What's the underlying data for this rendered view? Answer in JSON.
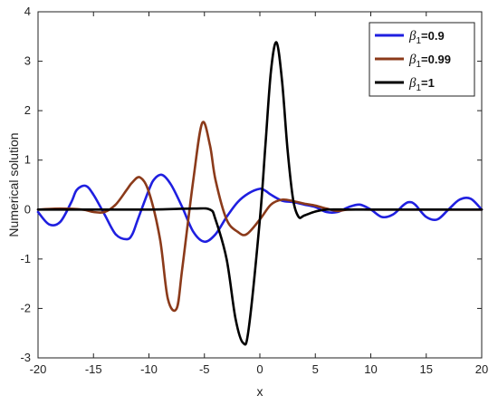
{
  "chart_data": {
    "type": "line",
    "title": "",
    "xlabel": "x",
    "ylabel": "Numerical solution",
    "xlim": [
      -20,
      20
    ],
    "ylim": [
      -3,
      4
    ],
    "xticks": [
      "-20",
      "-15",
      "-10",
      "-5",
      "0",
      "5",
      "10",
      "15",
      "20"
    ],
    "yticks": [
      "-3",
      "-2",
      "-1",
      "0",
      "1",
      "2",
      "3",
      "4"
    ],
    "grid": false,
    "legend_position": "top-right",
    "series": [
      {
        "name": "β1=0.9",
        "symbol": "β",
        "subscript": "1",
        "value_text": "=0.9",
        "color": "#1f1fe0",
        "x": [
          -20,
          -19,
          -18,
          -17,
          -16.5,
          -15.7,
          -15,
          -14,
          -13,
          -12,
          -11.5,
          -11,
          -10,
          -9.5,
          -8.8,
          -8,
          -7,
          -6,
          -5,
          -4,
          -3,
          -2,
          -1,
          0,
          0.5,
          1,
          2,
          3,
          4,
          5,
          6,
          7,
          8,
          9,
          10,
          11,
          12,
          13,
          13.5,
          14,
          15,
          16,
          17,
          18,
          19,
          20
        ],
        "y": [
          -0.05,
          -0.3,
          -0.25,
          0.15,
          0.4,
          0.48,
          0.3,
          -0.1,
          -0.5,
          -0.6,
          -0.5,
          -0.2,
          0.4,
          0.62,
          0.7,
          0.5,
          0.05,
          -0.45,
          -0.65,
          -0.5,
          -0.15,
          0.15,
          0.33,
          0.42,
          0.38,
          0.3,
          0.18,
          0.15,
          0.1,
          0.05,
          -0.05,
          -0.05,
          0.05,
          0.1,
          0.0,
          -0.15,
          -0.1,
          0.1,
          0.15,
          0.1,
          -0.15,
          -0.2,
          0.0,
          0.2,
          0.22,
          0.0
        ]
      },
      {
        "name": "β1=0.99",
        "symbol": "β",
        "subscript": "1",
        "value_text": "=0.99",
        "color": "#8b3a1a",
        "x": [
          -20,
          -18,
          -16,
          -15,
          -14,
          -13,
          -12,
          -11.5,
          -10.8,
          -10,
          -9,
          -8.3,
          -7.5,
          -7,
          -6,
          -5.2,
          -4.5,
          -4,
          -3,
          -2,
          -1.2,
          0,
          1,
          2,
          3,
          4,
          5,
          6,
          7,
          8,
          10,
          12,
          15,
          20
        ],
        "y": [
          0.0,
          0.02,
          0.0,
          -0.05,
          -0.05,
          0.1,
          0.4,
          0.55,
          0.65,
          0.35,
          -0.6,
          -1.8,
          -2.0,
          -1.2,
          0.6,
          1.75,
          1.3,
          0.6,
          -0.2,
          -0.45,
          -0.5,
          -0.2,
          0.1,
          0.2,
          0.17,
          0.12,
          0.08,
          0.02,
          -0.03,
          0.0,
          0.0,
          0.0,
          0.0,
          0.0
        ]
      },
      {
        "name": "β1=1",
        "symbol": "β",
        "subscript": "1",
        "value_text": "=1",
        "color": "#000000",
        "x": [
          -20,
          -15,
          -10,
          -6,
          -4.5,
          -4,
          -3,
          -2.2,
          -1.5,
          -1,
          0,
          0.5,
          1,
          1.5,
          2,
          2.5,
          3,
          3.5,
          4,
          5,
          6,
          8,
          10,
          15,
          20
        ],
        "y": [
          0.0,
          0.0,
          0.0,
          0.02,
          0.0,
          -0.2,
          -1.0,
          -2.2,
          -2.7,
          -2.4,
          -0.2,
          1.3,
          2.8,
          3.38,
          2.6,
          1.2,
          0.2,
          -0.15,
          -0.12,
          -0.04,
          0.0,
          0.0,
          0.0,
          0.0,
          0.0
        ]
      }
    ]
  }
}
